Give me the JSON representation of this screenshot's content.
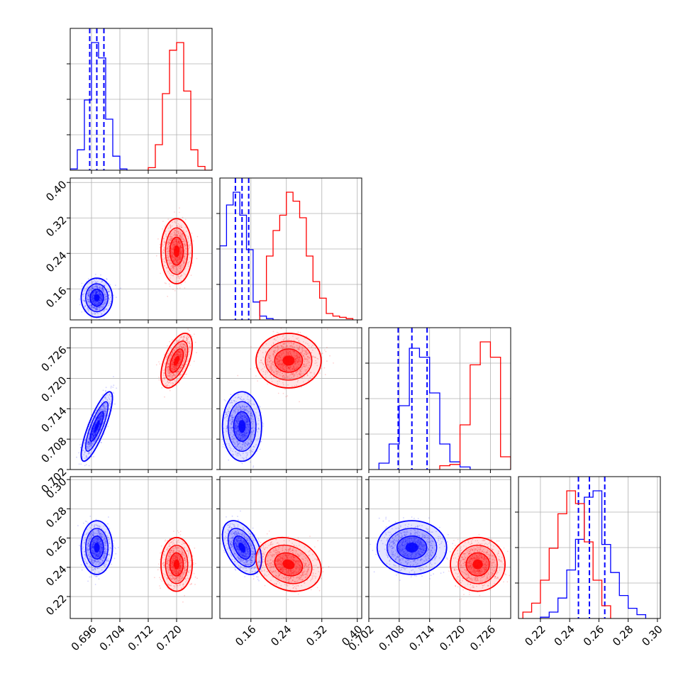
{
  "colors": {
    "posterior_a": "#0000ff",
    "posterior_b": "#ff0000",
    "grid": "#b0b0b0",
    "axes": "#000000"
  },
  "chart_data": {
    "type": "corner",
    "grid": true,
    "parameters": [
      {
        "range": [
          0.69,
          0.73
        ],
        "ticks": [
          "0.696",
          "0.704",
          "0.712",
          "0.720"
        ]
      },
      {
        "range": [
          0.09,
          0.41
        ],
        "ticks": [
          "0.16",
          "0.24",
          "0.32",
          "0.40"
        ]
      },
      {
        "range": [
          0.702,
          0.73
        ],
        "ticks": [
          "0.702",
          "0.708",
          "0.714",
          "0.720",
          "0.726"
        ]
      },
      {
        "range": [
          0.205,
          0.302
        ],
        "ticks": [
          "0.22",
          "0.24",
          "0.26",
          "0.28",
          "0.30"
        ]
      }
    ],
    "series": [
      {
        "color": "#0000ff",
        "peak": [
          0.6975,
          0.14,
          0.7105,
          0.2535
        ],
        "spread": [
          0.0018,
          0.018,
          0.0028,
          0.0075
        ],
        "quantiles": [
          [
            0.6955,
            0.6975,
            0.6995
          ],
          [
            0.125,
            0.14,
            0.155
          ],
          [
            0.7078,
            0.7105,
            0.7135
          ],
          [
            0.246,
            0.2535,
            0.264
          ]
        ],
        "histograms": [
          {
            "bins": [
              0.69,
              0.692,
              0.694,
              0.696,
              0.698,
              0.7,
              0.702,
              0.704,
              0.706
            ],
            "counts": [
              0.01,
              0.16,
              0.55,
              1.0,
              0.88,
              0.4,
              0.11,
              0.01
            ]
          },
          {
            "bins": [
              0.09,
              0.105,
              0.12,
              0.135,
              0.15,
              0.165,
              0.18,
              0.195,
              0.21,
              0.225
            ],
            "counts": [
              0.58,
              0.9,
              1.0,
              0.82,
              0.55,
              0.14,
              0.03,
              0.01,
              0.0
            ]
          },
          {
            "bins": [
              0.704,
              0.706,
              0.708,
              0.71,
              0.712,
              0.714,
              0.716,
              0.718,
              0.72,
              0.722
            ],
            "counts": [
              0.05,
              0.2,
              0.5,
              0.95,
              0.88,
              0.6,
              0.2,
              0.06,
              0.02
            ]
          },
          {
            "bins": [
              0.22,
              0.226,
              0.232,
              0.238,
              0.244,
              0.25,
              0.256,
              0.262,
              0.268,
              0.274,
              0.28,
              0.286,
              0.292
            ],
            "counts": [
              0.01,
              0.05,
              0.16,
              0.38,
              0.62,
              0.95,
              1.0,
              0.58,
              0.36,
              0.18,
              0.08,
              0.03
            ]
          }
        ]
      },
      {
        "color": "#ff0000",
        "peak": [
          0.72,
          0.245,
          0.7235,
          0.242
        ],
        "spread": [
          0.0018,
          0.03,
          0.0022,
          0.0075
        ],
        "histograms": [
          {
            "bins": [
              0.712,
              0.714,
              0.716,
              0.718,
              0.72,
              0.722,
              0.724,
              0.726,
              0.728,
              0.73
            ],
            "counts": [
              0.02,
              0.2,
              0.6,
              0.94,
              1.0,
              0.62,
              0.16,
              0.03,
              0.0
            ]
          },
          {
            "bins": [
              0.18,
              0.195,
              0.21,
              0.225,
              0.24,
              0.255,
              0.27,
              0.285,
              0.3,
              0.315,
              0.33,
              0.345,
              0.36,
              0.375,
              0.39
            ],
            "counts": [
              0.15,
              0.5,
              0.7,
              0.82,
              1.0,
              0.93,
              0.8,
              0.5,
              0.3,
              0.17,
              0.05,
              0.03,
              0.02,
              0.01
            ]
          },
          {
            "bins": [
              0.716,
              0.718,
              0.72,
              0.722,
              0.724,
              0.726,
              0.728,
              0.73
            ],
            "counts": [
              0.03,
              0.04,
              0.35,
              0.82,
              1.0,
              0.88,
              0.1
            ]
          },
          {
            "bins": [
              0.208,
              0.214,
              0.22,
              0.226,
              0.232,
              0.238,
              0.244,
              0.25,
              0.256,
              0.262,
              0.268
            ],
            "counts": [
              0.05,
              0.12,
              0.3,
              0.55,
              0.82,
              1.0,
              0.9,
              0.6,
              0.3,
              0.1
            ]
          }
        ]
      }
    ]
  }
}
